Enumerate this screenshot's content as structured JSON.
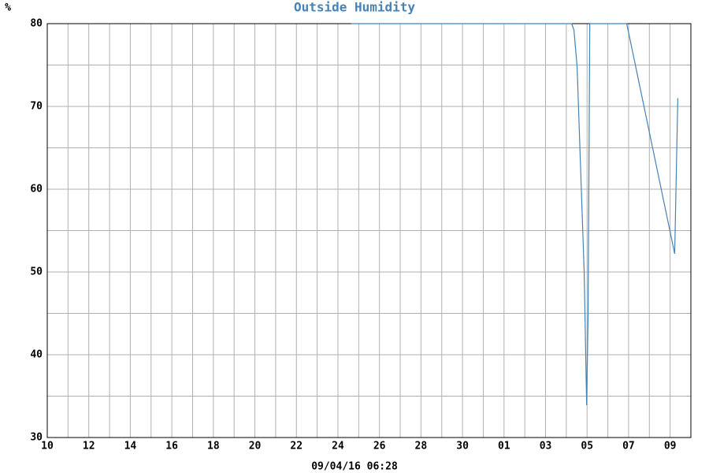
{
  "chart_data": {
    "type": "line",
    "title": "Outside Humidity",
    "y_unit": "%",
    "footer": "09/04/16 06:28",
    "x": [
      14.64,
      25.26,
      25.37,
      25.52,
      25.86,
      25.98,
      26.05,
      26.13,
      27.91,
      30.22,
      30.37
    ],
    "series": [
      {
        "name": "Outside Humidity",
        "color": "#4682b4",
        "values": [
          80,
          80,
          79.2,
          74.8,
          50,
          33.9,
          45,
          80,
          80,
          52.2,
          71
        ]
      }
    ],
    "xlim": [
      0,
      31
    ],
    "xticks": [
      {
        "value": 0,
        "label": "10"
      },
      {
        "value": 2,
        "label": "12"
      },
      {
        "value": 4,
        "label": "14"
      },
      {
        "value": 6,
        "label": "16"
      },
      {
        "value": 8,
        "label": "18"
      },
      {
        "value": 10,
        "label": "20"
      },
      {
        "value": 12,
        "label": "22"
      },
      {
        "value": 14,
        "label": "24"
      },
      {
        "value": 16,
        "label": "26"
      },
      {
        "value": 18,
        "label": "28"
      },
      {
        "value": 20,
        "label": "30"
      },
      {
        "value": 22,
        "label": "01"
      },
      {
        "value": 24,
        "label": "03"
      },
      {
        "value": 26,
        "label": "05"
      },
      {
        "value": 28,
        "label": "07"
      },
      {
        "value": 30,
        "label": "09"
      }
    ],
    "xminorticks": [
      1,
      3,
      5,
      7,
      9,
      11,
      13,
      15,
      17,
      19,
      21,
      23,
      25,
      27,
      29
    ],
    "ylim": [
      30,
      80
    ],
    "yticks": [
      30,
      40,
      50,
      60,
      70,
      80
    ],
    "yminorticks": [
      35,
      45,
      55,
      65,
      75
    ],
    "grid": true
  }
}
